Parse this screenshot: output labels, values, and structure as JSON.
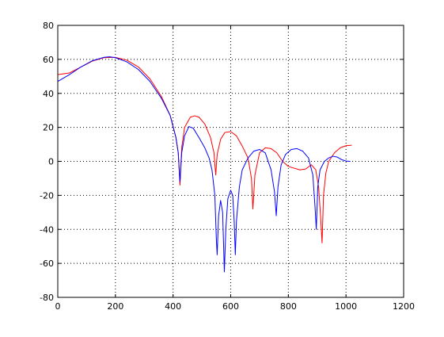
{
  "chart_data": {
    "type": "line",
    "title": "",
    "xlabel": "",
    "ylabel": "",
    "xlim": [
      0,
      1200
    ],
    "ylim": [
      -80,
      80
    ],
    "xticks": [
      0,
      200,
      400,
      600,
      800,
      1000,
      1200
    ],
    "yticks": [
      -80,
      -60,
      -40,
      -20,
      0,
      20,
      40,
      60,
      80
    ],
    "xtick_labels": [
      "0",
      "200",
      "400",
      "600",
      "800",
      "1000",
      "1200"
    ],
    "ytick_labels": [
      "-80",
      "-60",
      "-40",
      "-20",
      "0",
      "20",
      "40",
      "60",
      "80"
    ],
    "grid": true,
    "series": [
      {
        "color": "#ff0000",
        "points": [
          [
            0,
            51
          ],
          [
            40,
            52
          ],
          [
            80,
            55.5
          ],
          [
            120,
            59
          ],
          [
            160,
            61
          ],
          [
            200,
            61.2
          ],
          [
            240,
            59.5
          ],
          [
            280,
            55.5
          ],
          [
            320,
            48.5
          ],
          [
            360,
            38
          ],
          [
            390,
            27
          ],
          [
            410,
            14
          ],
          [
            418,
            5
          ],
          [
            424,
            -14
          ],
          [
            430,
            8
          ],
          [
            440,
            20
          ],
          [
            460,
            26
          ],
          [
            475,
            26.8
          ],
          [
            490,
            26
          ],
          [
            510,
            22
          ],
          [
            530,
            14
          ],
          [
            542,
            5
          ],
          [
            548,
            -8
          ],
          [
            553,
            4
          ],
          [
            565,
            13
          ],
          [
            580,
            17
          ],
          [
            600,
            17.5
          ],
          [
            620,
            15
          ],
          [
            640,
            9
          ],
          [
            660,
            2
          ],
          [
            672,
            -10
          ],
          [
            677,
            -28
          ],
          [
            684,
            -8
          ],
          [
            700,
            5
          ],
          [
            720,
            8
          ],
          [
            740,
            7.5
          ],
          [
            760,
            5
          ],
          [
            780,
            0
          ],
          [
            800,
            -3
          ],
          [
            820,
            -4
          ],
          [
            840,
            -5
          ],
          [
            860,
            -4.5
          ],
          [
            880,
            -2
          ],
          [
            895,
            -5
          ],
          [
            905,
            -15
          ],
          [
            912,
            -33
          ],
          [
            917,
            -48
          ],
          [
            922,
            -20
          ],
          [
            930,
            -7
          ],
          [
            940,
            0
          ],
          [
            960,
            5
          ],
          [
            980,
            8
          ],
          [
            1000,
            9.2
          ],
          [
            1020,
            9.5
          ]
        ]
      },
      {
        "color": "#0000ff",
        "points": [
          [
            0,
            47
          ],
          [
            40,
            51
          ],
          [
            80,
            55.5
          ],
          [
            120,
            59.2
          ],
          [
            160,
            61.2
          ],
          [
            180,
            61.5
          ],
          [
            200,
            61
          ],
          [
            240,
            58.5
          ],
          [
            280,
            54
          ],
          [
            320,
            47
          ],
          [
            360,
            37
          ],
          [
            390,
            27
          ],
          [
            410,
            14
          ],
          [
            418,
            5
          ],
          [
            424,
            -12
          ],
          [
            430,
            5
          ],
          [
            440,
            15
          ],
          [
            455,
            20.5
          ],
          [
            470,
            19.5
          ],
          [
            490,
            14
          ],
          [
            510,
            8
          ],
          [
            525,
            2
          ],
          [
            535,
            -5
          ],
          [
            545,
            -20
          ],
          [
            550,
            -45
          ],
          [
            553,
            -55
          ],
          [
            558,
            -32
          ],
          [
            565,
            -23
          ],
          [
            572,
            -30
          ],
          [
            578,
            -65
          ],
          [
            583,
            -40
          ],
          [
            590,
            -22
          ],
          [
            600,
            -17
          ],
          [
            607,
            -20
          ],
          [
            612,
            -35
          ],
          [
            616,
            -55
          ],
          [
            620,
            -35
          ],
          [
            630,
            -15
          ],
          [
            640,
            -5
          ],
          [
            660,
            2
          ],
          [
            680,
            6
          ],
          [
            700,
            7
          ],
          [
            720,
            5
          ],
          [
            740,
            -5
          ],
          [
            752,
            -18
          ],
          [
            758,
            -32
          ],
          [
            764,
            -15
          ],
          [
            775,
            -2
          ],
          [
            790,
            4
          ],
          [
            810,
            7
          ],
          [
            830,
            7.5
          ],
          [
            850,
            6
          ],
          [
            870,
            2
          ],
          [
            885,
            -8
          ],
          [
            893,
            -28
          ],
          [
            897,
            -40
          ],
          [
            902,
            -15
          ],
          [
            910,
            -5
          ],
          [
            925,
            0
          ],
          [
            940,
            2
          ],
          [
            955,
            3
          ],
          [
            970,
            2.5
          ],
          [
            985,
            1
          ],
          [
            1000,
            0.2
          ],
          [
            1015,
            0
          ]
        ]
      }
    ]
  }
}
